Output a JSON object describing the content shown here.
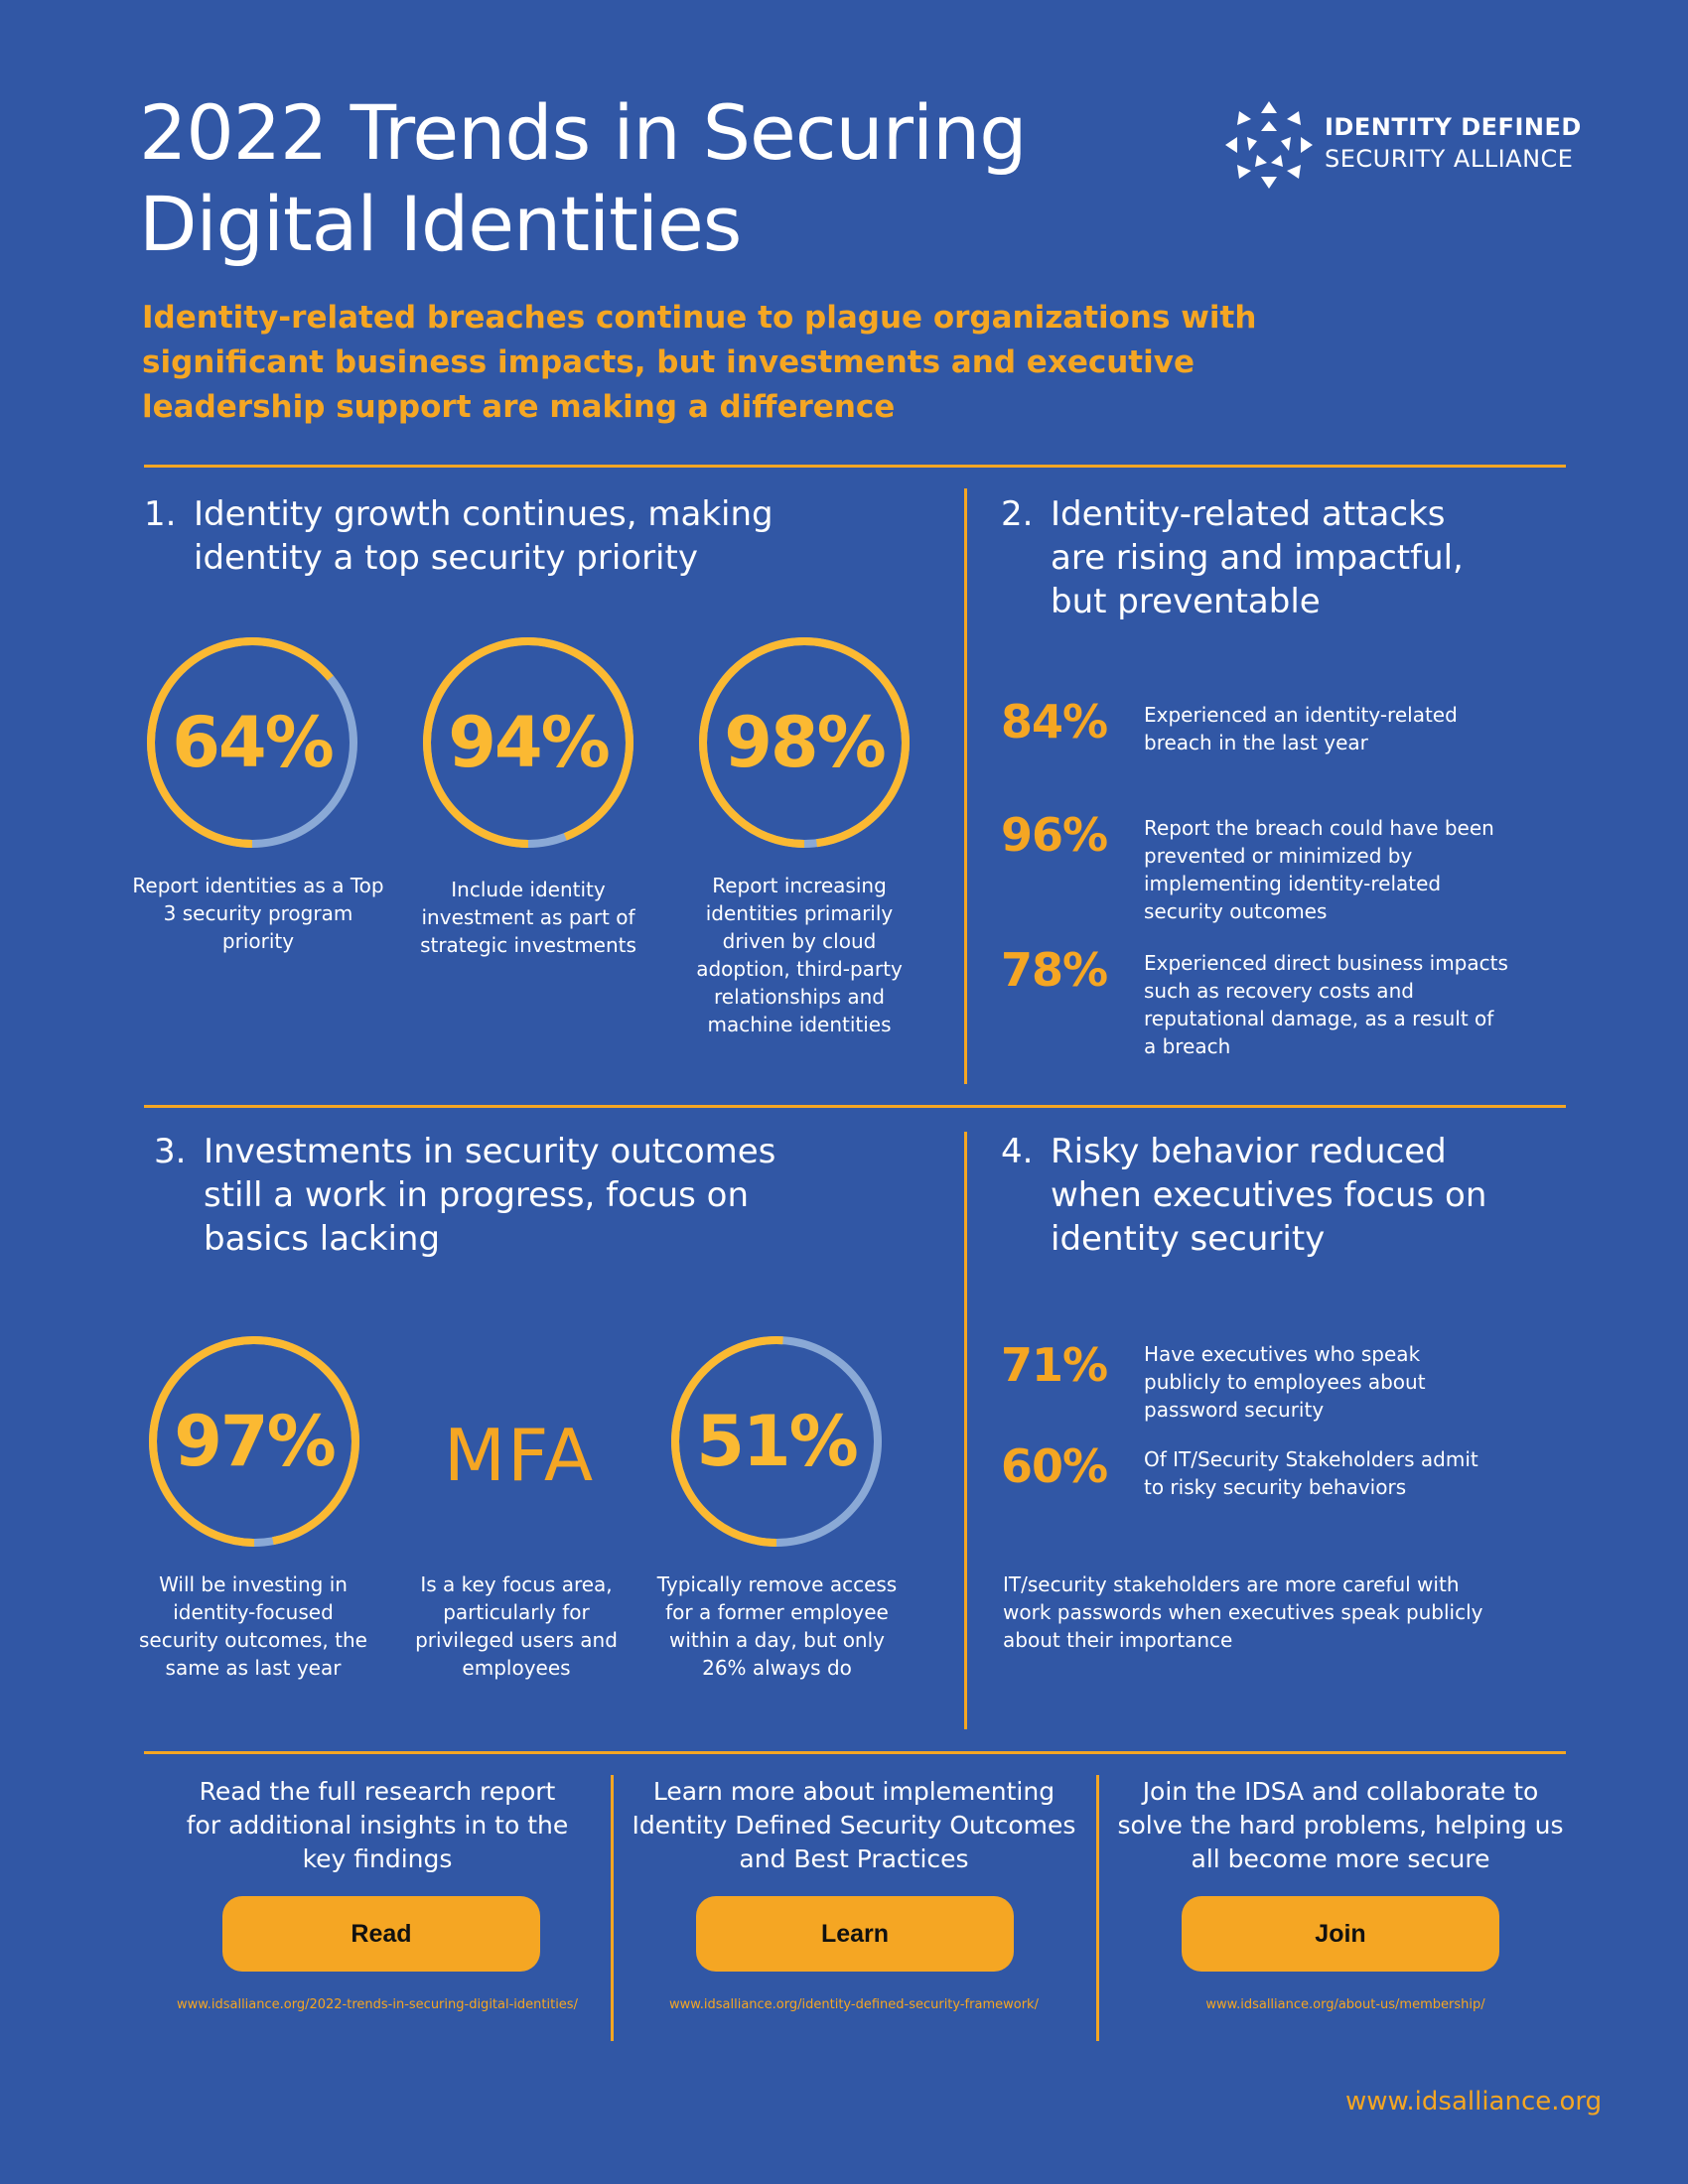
{
  "header": {
    "title_line1": "2022 Trends in Securing",
    "title_line2": "Digital Identities",
    "logo_line1": "IDENTITY DEFINED",
    "logo_line2": "SECURITY ALLIANCE",
    "subtitle": "Identity-related breaches continue to plague organizations with significant business impacts, but investments and executive leadership support are making a difference"
  },
  "colors": {
    "background": "#3157a5",
    "accent": "#f5a623",
    "ring_track": "#8aa9d6",
    "ring_fill": "#fbb932"
  },
  "sections": {
    "s1": {
      "num": "1.",
      "title_line1": "Identity growth continues, making",
      "title_line2": "identity a top security priority",
      "stats": [
        {
          "value": "64%",
          "fraction": 0.64,
          "caption": "Report identities as a Top 3 security program priority"
        },
        {
          "value": "94%",
          "fraction": 0.94,
          "caption": "Include identity investment as part of strategic investments"
        },
        {
          "value": "98%",
          "fraction": 0.98,
          "caption": "Report increasing identities primarily driven by cloud adoption, third-party relationships and machine identities"
        }
      ]
    },
    "s2": {
      "num": "2.",
      "title_line1": "Identity-related attacks",
      "title_line2": "are rising and impactful,",
      "title_line3": "but preventable",
      "stats": [
        {
          "value": "84%",
          "text": "Experienced an identity-related breach in the last year"
        },
        {
          "value": "96%",
          "text": "Report the breach could have been prevented or minimized by implementing identity-related security outcomes"
        },
        {
          "value": "78%",
          "text": "Experienced direct business impacts such as recovery costs and reputational damage, as a result of a breach"
        }
      ]
    },
    "s3": {
      "num": "3.",
      "title_line1": "Investments in security outcomes",
      "title_line2": "still a work in progress, focus on",
      "title_line3": "basics lacking",
      "stats": [
        {
          "value": "97%",
          "fraction": 0.97,
          "caption": "Will be investing in identity-focused security outcomes, the same as last year"
        },
        {
          "value": "MFA",
          "caption": "Is a key focus area, particularly for privileged users and employees"
        },
        {
          "value": "51%",
          "fraction": 0.51,
          "caption": "Typically remove access for a former employee within a day, but only 26% always do"
        }
      ]
    },
    "s4": {
      "num": "4.",
      "title_line1": "Risky behavior reduced",
      "title_line2": "when executives focus on",
      "title_line3": "identity security",
      "stats": [
        {
          "value": "71%",
          "text": "Have executives who speak publicly to employees about password security"
        },
        {
          "value": "60%",
          "text": "Of IT/Security Stakeholders admit to risky security behaviors"
        }
      ],
      "note": "IT/security stakeholders are more careful with work passwords when executives speak publicly about their importance"
    }
  },
  "cta": [
    {
      "text": "Read the full research report for additional insights in to the key findings",
      "button": "Read",
      "url": "www.idsalliance.org/2022-trends-in-securing-digital-identities/"
    },
    {
      "text": "Learn more about implementing Identity Defined Security Outcomes and Best Practices",
      "button": "Learn",
      "url": "www.idsalliance.org/identity-defined-security-framework/"
    },
    {
      "text": "Join the IDSA and collaborate to solve the hard problems, helping us all become more secure",
      "button": "Join",
      "url": "www.idsalliance.org/about-us/membership/"
    }
  ],
  "footer": {
    "url": "www.idsalliance.org"
  }
}
